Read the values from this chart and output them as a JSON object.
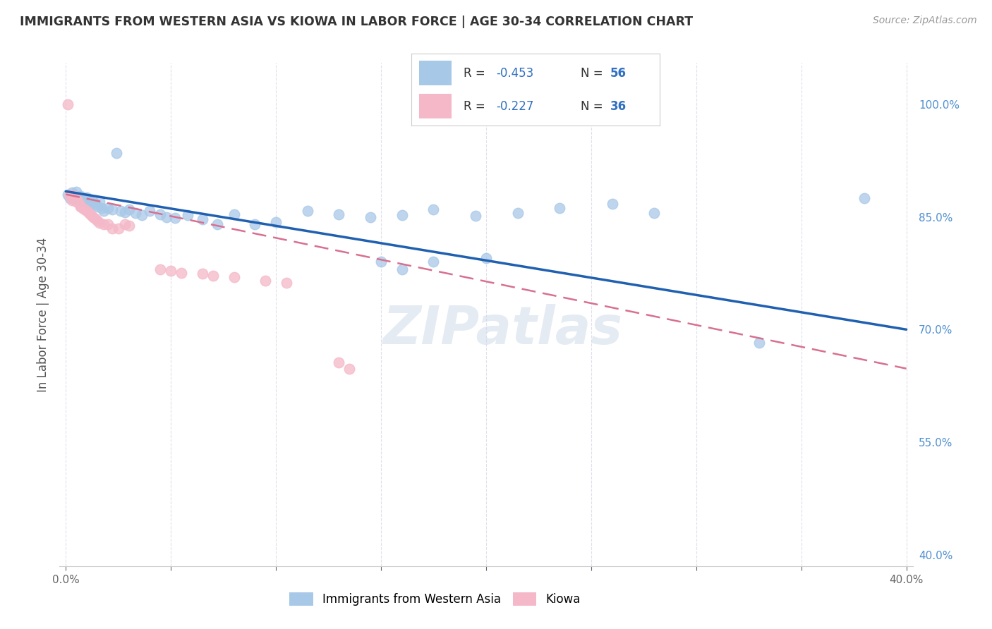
{
  "title": "IMMIGRANTS FROM WESTERN ASIA VS KIOWA IN LABOR FORCE | AGE 30-34 CORRELATION CHART",
  "source": "Source: ZipAtlas.com",
  "ylabel": "In Labor Force | Age 30-34",
  "xlim": [
    -0.003,
    0.403
  ],
  "ylim": [
    0.385,
    1.055
  ],
  "xticks": [
    0.0,
    0.05,
    0.1,
    0.15,
    0.2,
    0.25,
    0.3,
    0.35,
    0.4
  ],
  "xtick_labels": [
    "0.0%",
    "",
    "",
    "",
    "",
    "",
    "",
    "",
    "40.0%"
  ],
  "yticks_right": [
    0.4,
    0.55,
    0.7,
    0.85,
    1.0
  ],
  "ytick_labels_right": [
    "40.0%",
    "55.0%",
    "70.0%",
    "85.0%",
    "100.0%"
  ],
  "legend_r1": "-0.453",
  "legend_n1": "56",
  "legend_r2": "-0.227",
  "legend_n2": "36",
  "blue_color": "#a8c8e8",
  "pink_color": "#f4b8c8",
  "trendline_blue": "#2060b0",
  "trendline_pink": "#d87090",
  "background_color": "#ffffff",
  "grid_color": "#d8d8e8",
  "blue_scatter_x": [
    0.001,
    0.002,
    0.003,
    0.004,
    0.004,
    0.005,
    0.005,
    0.006,
    0.007,
    0.007,
    0.008,
    0.009,
    0.01,
    0.01,
    0.011,
    0.012,
    0.013,
    0.014,
    0.015,
    0.016,
    0.017,
    0.018,
    0.02,
    0.022,
    0.024,
    0.026,
    0.028,
    0.03,
    0.033,
    0.036,
    0.04,
    0.045,
    0.048,
    0.052,
    0.058,
    0.065,
    0.072,
    0.08,
    0.09,
    0.1,
    0.115,
    0.13,
    0.145,
    0.16,
    0.175,
    0.195,
    0.215,
    0.235,
    0.26,
    0.28,
    0.15,
    0.16,
    0.175,
    0.2,
    0.33,
    0.38
  ],
  "blue_scatter_y": [
    0.88,
    0.875,
    0.882,
    0.879,
    0.875,
    0.883,
    0.878,
    0.876,
    0.874,
    0.878,
    0.871,
    0.873,
    0.876,
    0.87,
    0.872,
    0.868,
    0.87,
    0.866,
    0.864,
    0.87,
    0.862,
    0.858,
    0.862,
    0.86,
    0.935,
    0.858,
    0.856,
    0.86,
    0.855,
    0.852,
    0.858,
    0.853,
    0.85,
    0.849,
    0.852,
    0.847,
    0.84,
    0.853,
    0.84,
    0.843,
    0.858,
    0.853,
    0.85,
    0.852,
    0.86,
    0.851,
    0.855,
    0.862,
    0.867,
    0.855,
    0.79,
    0.78,
    0.79,
    0.795,
    0.682,
    0.875
  ],
  "pink_scatter_x": [
    0.001,
    0.002,
    0.002,
    0.003,
    0.003,
    0.004,
    0.005,
    0.005,
    0.006,
    0.007,
    0.007,
    0.008,
    0.009,
    0.01,
    0.011,
    0.012,
    0.013,
    0.014,
    0.015,
    0.016,
    0.018,
    0.02,
    0.022,
    0.025,
    0.028,
    0.03,
    0.045,
    0.05,
    0.055,
    0.065,
    0.07,
    0.08,
    0.095,
    0.105,
    0.13,
    0.135
  ],
  "pink_scatter_y": [
    1.0,
    0.88,
    0.878,
    0.876,
    0.872,
    0.878,
    0.874,
    0.87,
    0.87,
    0.865,
    0.864,
    0.862,
    0.86,
    0.858,
    0.855,
    0.852,
    0.85,
    0.848,
    0.845,
    0.842,
    0.84,
    0.84,
    0.835,
    0.835,
    0.84,
    0.838,
    0.78,
    0.778,
    0.775,
    0.774,
    0.772,
    0.77,
    0.765,
    0.762,
    0.656,
    0.648
  ],
  "blue_trend_x": [
    0.0,
    0.4
  ],
  "blue_trend_y": [
    0.884,
    0.7
  ],
  "pink_trend_x": [
    0.0,
    0.4
  ],
  "pink_trend_y": [
    0.88,
    0.648
  ]
}
